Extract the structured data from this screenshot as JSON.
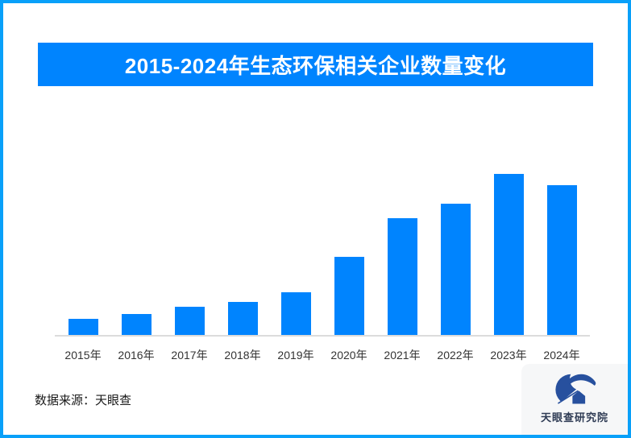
{
  "page": {
    "title": "2015-2024年生态环保相关企业数量变化",
    "source_note": "数据来源：天眼查",
    "colors": {
      "frame_border": "#09a0f9",
      "banner_background": "#0084fe",
      "bar_fill": "#0084fe",
      "banner_text": "#ffffff",
      "axis_line": "#dcdcdc",
      "axis_label_text": "#333333",
      "logo_panel_background": "#f6f7f8",
      "logo_mark_navy": "#27509e",
      "logo_text_color": "#2e3b54"
    }
  },
  "logo": {
    "name": "tianyancha-research-institute-logo",
    "text": "天眼查研究院"
  },
  "chart_data": {
    "type": "bar",
    "title": "2015-2024年生态环保相关企业数量变化",
    "categories": [
      "2015年",
      "2016年",
      "2017年",
      "2018年",
      "2019年",
      "2020年",
      "2021年",
      "2022年",
      "2023年",
      "2024年"
    ],
    "values": [
      10,
      13,
      17.5,
      20.5,
      26.5,
      48.5,
      72.5,
      81.5,
      100,
      93
    ],
    "values_unit": "relative index, % of tallest bar (no numeric y-axis or data labels shown in image)",
    "bar_color": "#0084fe",
    "xlabel": "",
    "ylabel": "",
    "y_axis_shown": false,
    "value_labels_shown": false,
    "grid": false,
    "legend": false,
    "source": "数据来源：天眼查"
  }
}
